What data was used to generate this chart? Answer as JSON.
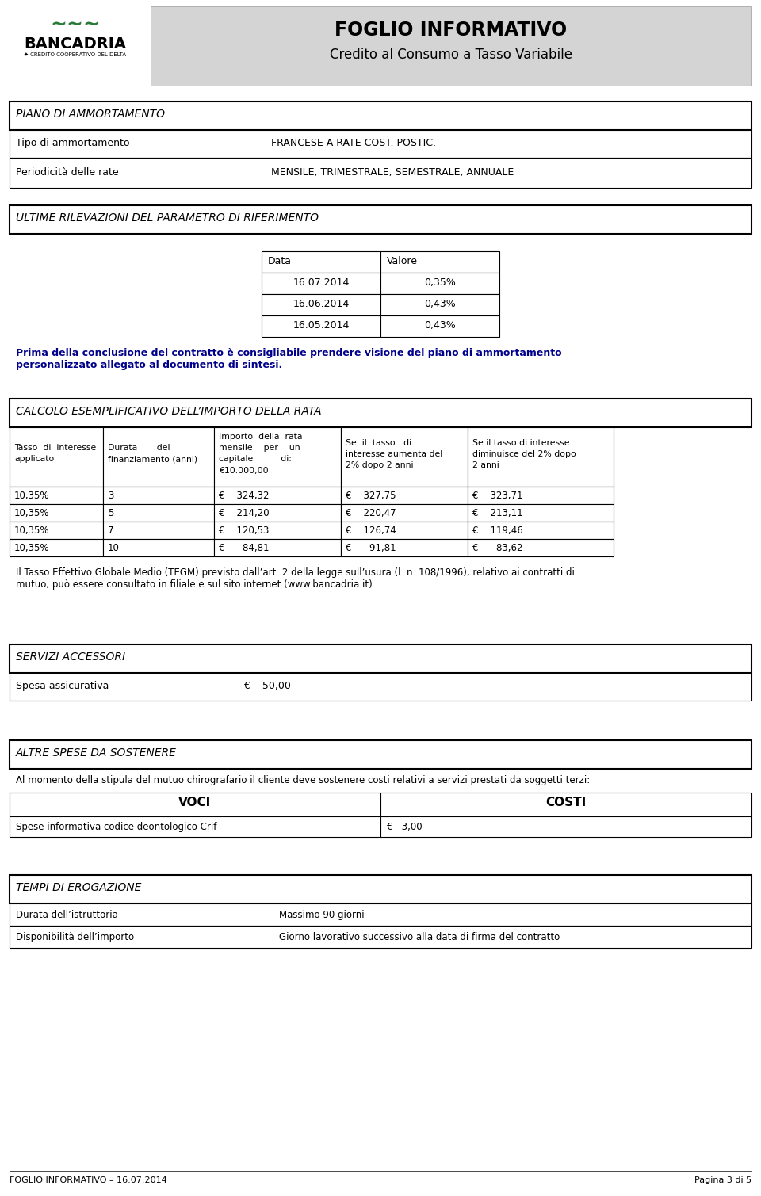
{
  "title_main": "FOGLIO INFORMATIVO",
  "title_sub": "Credito al Consumo a Tasso Variabile",
  "s1_title": "PIANO DI AMMORTAMENTO",
  "s1_rows": [
    [
      "Tipo di ammortamento",
      "FRANCESE A RATE COST. POSTIC."
    ],
    [
      "Periodicità delle rate",
      "MENSILE, TRIMESTRALE, SEMESTRALE, ANNUALE"
    ]
  ],
  "s2_title": "ULTIME RILEVAZIONI DEL PARAMETRO DI RIFERIMENTO",
  "tbl2_hdrs": [
    "Data",
    "Valore"
  ],
  "tbl2_rows": [
    [
      "16.07.2014",
      "0,35%"
    ],
    [
      "16.06.2014",
      "0,43%"
    ],
    [
      "16.05.2014",
      "0,43%"
    ]
  ],
  "note_text": "Prima della conclusione del contratto è consigliabile prendere visione del piano di ammortamento\npersonalizzato allegato al documento di sintesi.",
  "s3_title": "CALCOLO ESEMPLIFICATIVO DELL’IMPORTO DELLA RATA",
  "tbl3_hdrs": [
    "Tasso  di  interesse\napplicato",
    "Durata       del\nfinanziamento (anni)",
    "Importo  della  rata\nmensile    per    un\ncapitale          di:\n€10.000,00",
    "Se  il  tasso   di\ninteresse aumenta del\n2% dopo 2 anni",
    "Se il tasso di interesse\ndiminuisce del 2% dopo\n2 anni"
  ],
  "tbl3_rows": [
    [
      "10,35%",
      "3",
      "€    324,32",
      "€    327,75",
      "€    323,71"
    ],
    [
      "10,35%",
      "5",
      "€    214,20",
      "€    220,47",
      "€    213,11"
    ],
    [
      "10,35%",
      "7",
      "€    120,53",
      "€    126,74",
      "€    119,46"
    ],
    [
      "10,35%",
      "10",
      "€      84,81",
      "€      91,81",
      "€      83,62"
    ]
  ],
  "tbl3_col_ws": [
    118,
    140,
    160,
    160,
    184
  ],
  "tegm_plain": "Il previsto dall’art. 2 della legge sull’usura (l. n. 108/1996), relativo ai contratti di\nmutuo, può essere consultato in filiale e sul sito internet (www.bancadria.it).",
  "s4_title": "SERVIZI ACCESSORI",
  "s4_rows": [
    [
      "Spesa assicurativa",
      "€    50,00"
    ]
  ],
  "s5_title": "ALTRE SPESE DA SOSTENERE",
  "s5_intro": "Al momento della stipula del mutuo chirografario il cliente deve sostenere costi relativi a servizi prestati da soggetti terzi:",
  "s5_hdrs": [
    "VOCI",
    "COSTI"
  ],
  "s5_rows": [
    [
      "Spese informativa codice deontologico Crif",
      "€   3,00"
    ]
  ],
  "s6_title": "TEMPI DI EROGAZIONE",
  "s6_rows": [
    [
      "Durata dell’istruttoria",
      "Massimo 90 giorni"
    ],
    [
      "Disponibilità dell’importo",
      "Giorno lavorativo successivo alla data di firma del contratto"
    ]
  ],
  "footer_left": "FOGLIO INFORMATIVO – 16.07.2014",
  "footer_right": "Pagina 3 di 5",
  "LM": 12,
  "TW": 936
}
